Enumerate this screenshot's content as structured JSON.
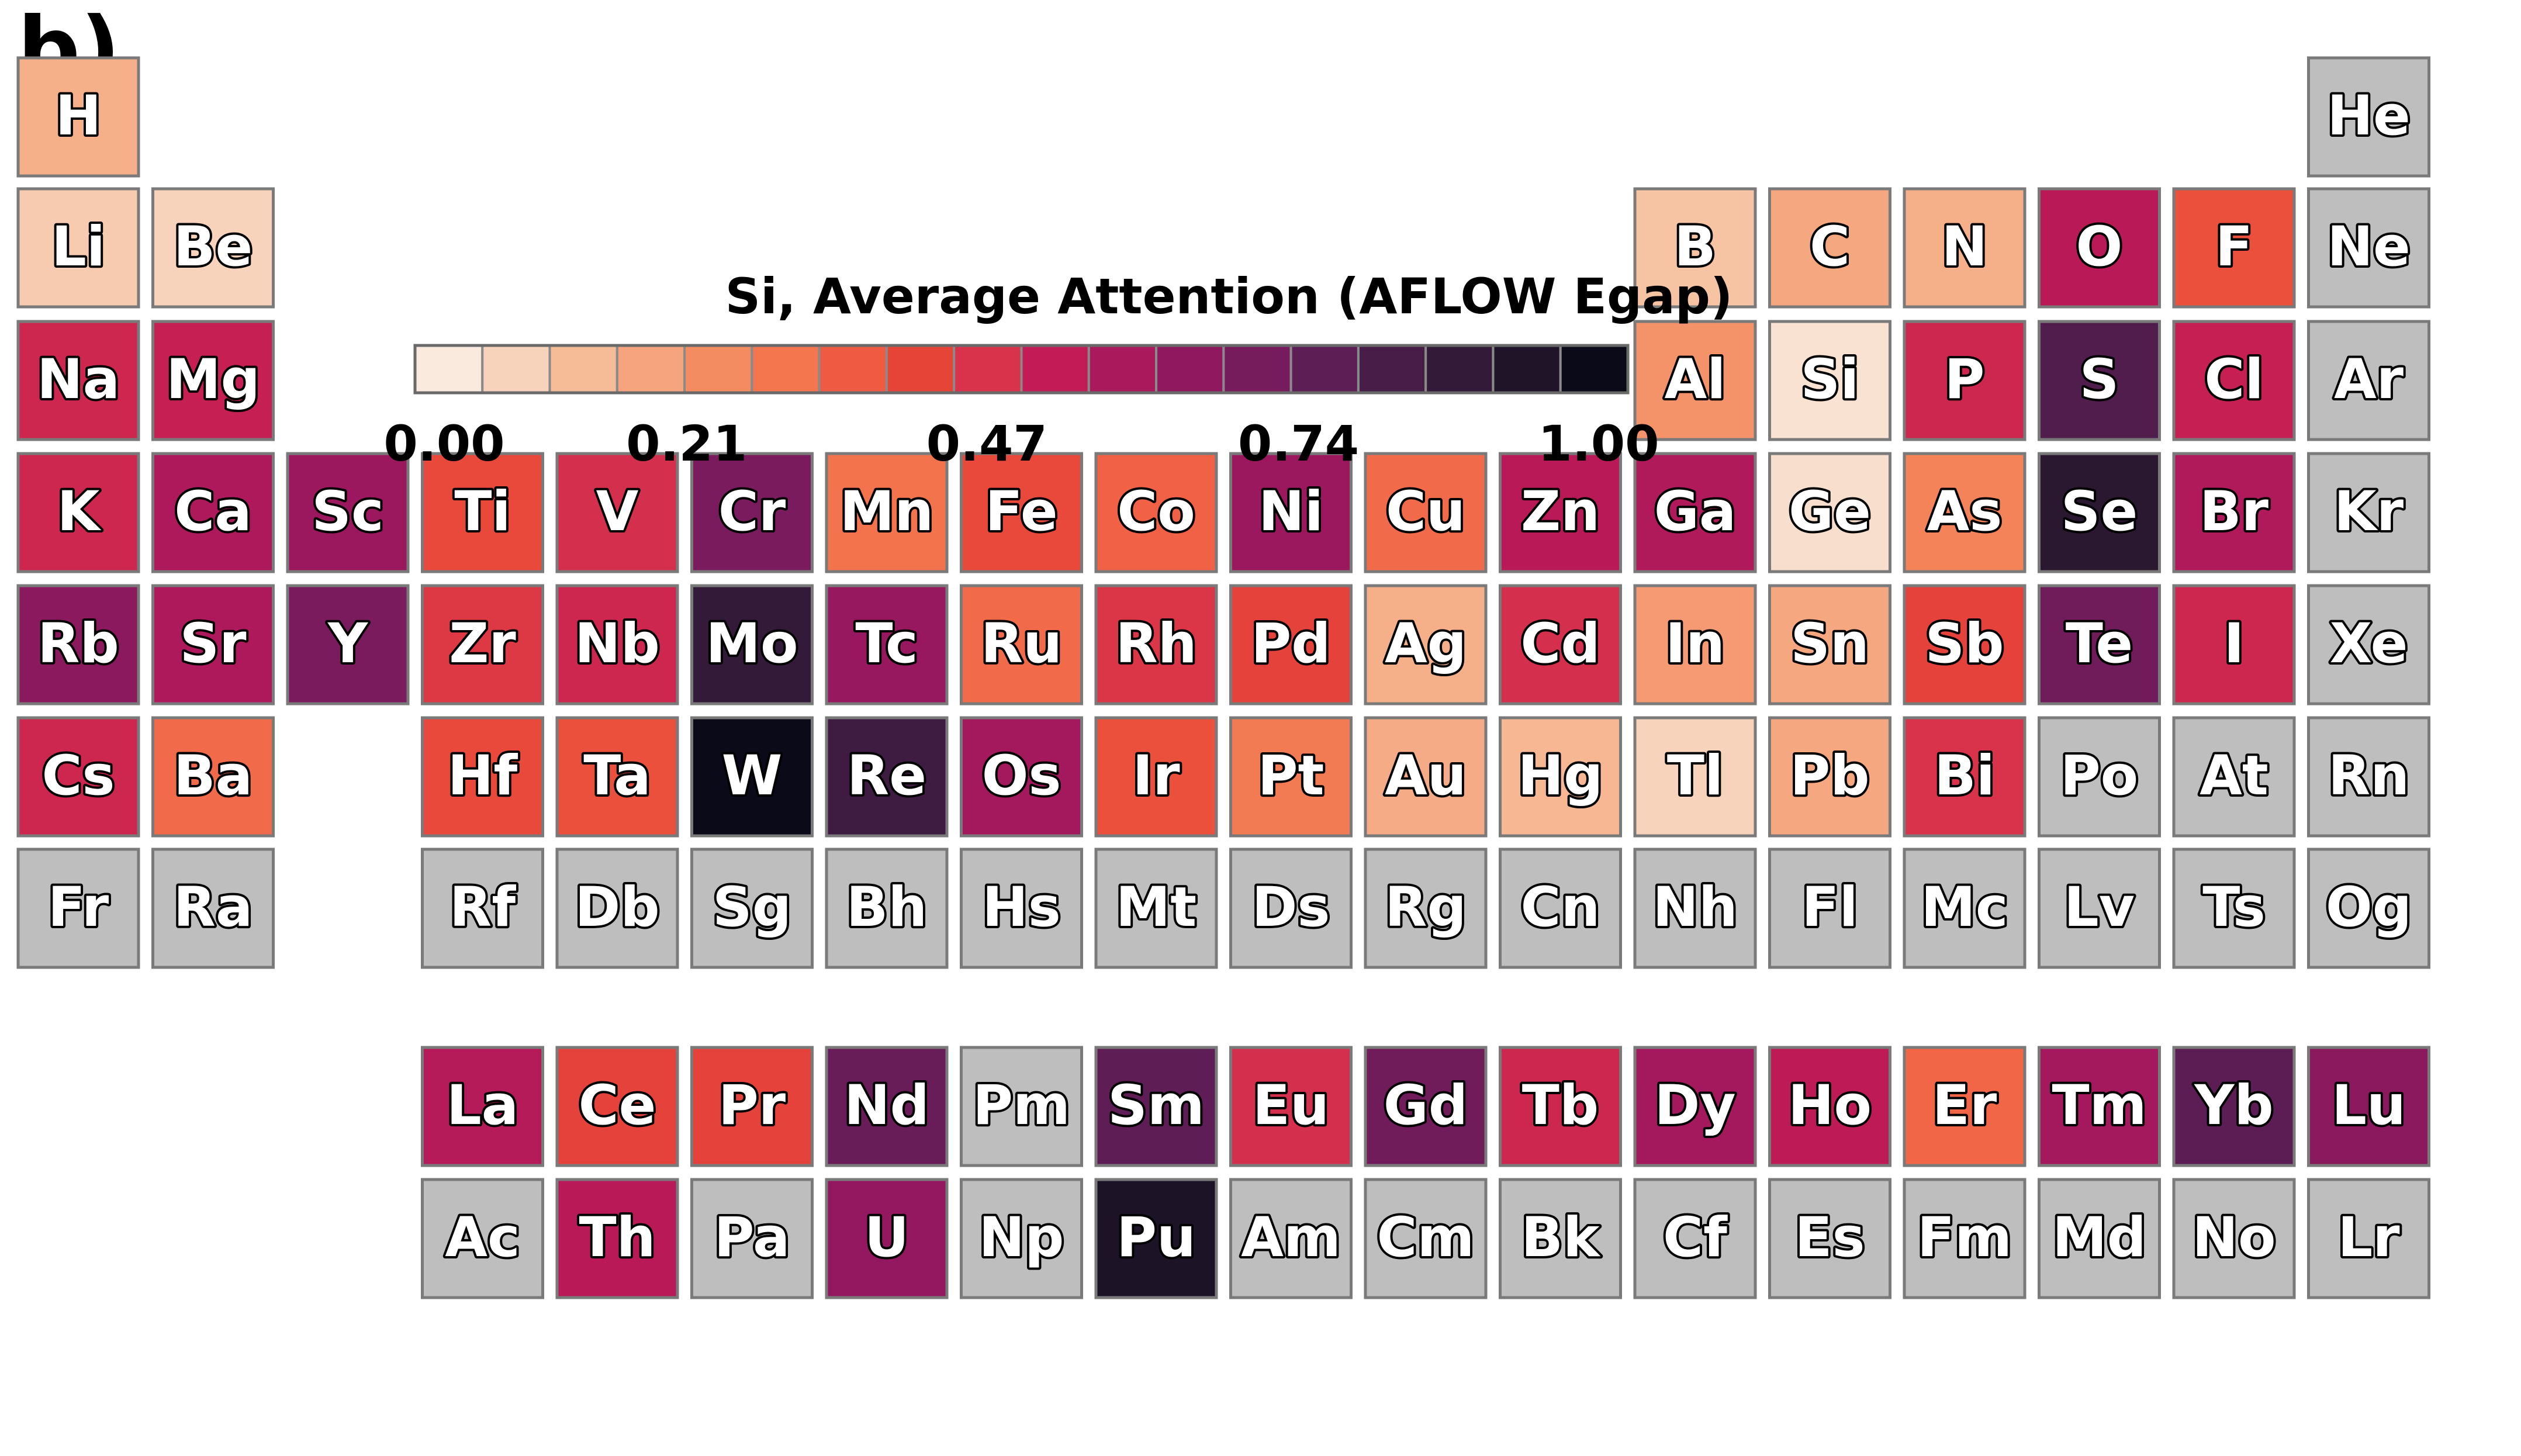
{
  "panel_label": "b)",
  "chart_data": {
    "type": "heatmap",
    "title": "Si, Average Attention (AFLOW Egap)",
    "colorbar": {
      "ticks": [
        "0.00",
        "0.21",
        "0.47",
        "0.74",
        "1.00"
      ],
      "tick_values": [
        0.0,
        0.21,
        0.47,
        0.74,
        1.0
      ],
      "range": [
        0,
        1
      ],
      "colors": [
        "#fae9dd",
        "#f7d3bc",
        "#f6bc98",
        "#f5a47d",
        "#f48c62",
        "#f3764e",
        "#ef5b42",
        "#e74438",
        "#d8334a",
        "#c21b55",
        "#a9195c",
        "#90185f",
        "#761b5c",
        "#5d1d55",
        "#481d48",
        "#321a38",
        "#201528",
        "#0a0a18"
      ],
      "missing_color": "#bebebe"
    },
    "elements": [
      {
        "symbol": "H",
        "row": 1,
        "col": 1,
        "value": 0.15
      },
      {
        "symbol": "He",
        "row": 1,
        "col": 18,
        "value": null
      },
      {
        "symbol": "Li",
        "row": 2,
        "col": 1,
        "value": 0.08
      },
      {
        "symbol": "Be",
        "row": 2,
        "col": 2,
        "value": 0.06
      },
      {
        "symbol": "B",
        "row": 2,
        "col": 13,
        "value": 0.1
      },
      {
        "symbol": "C",
        "row": 2,
        "col": 14,
        "value": 0.17
      },
      {
        "symbol": "N",
        "row": 2,
        "col": 15,
        "value": 0.15
      },
      {
        "symbol": "O",
        "row": 2,
        "col": 16,
        "value": 0.55
      },
      {
        "symbol": "F",
        "row": 2,
        "col": 17,
        "value": 0.38
      },
      {
        "symbol": "Ne",
        "row": 2,
        "col": 18,
        "value": null
      },
      {
        "symbol": "Na",
        "row": 3,
        "col": 1,
        "value": 0.5
      },
      {
        "symbol": "Mg",
        "row": 3,
        "col": 2,
        "value": 0.52
      },
      {
        "symbol": "Al",
        "row": 3,
        "col": 13,
        "value": 0.22
      },
      {
        "symbol": "Si",
        "row": 3,
        "col": 14,
        "value": 0.02
      },
      {
        "symbol": "P",
        "row": 3,
        "col": 15,
        "value": 0.5
      },
      {
        "symbol": "S",
        "row": 3,
        "col": 16,
        "value": 0.8
      },
      {
        "symbol": "Cl",
        "row": 3,
        "col": 17,
        "value": 0.52
      },
      {
        "symbol": "Ar",
        "row": 3,
        "col": 18,
        "value": null
      },
      {
        "symbol": "K",
        "row": 4,
        "col": 1,
        "value": 0.5
      },
      {
        "symbol": "Ca",
        "row": 4,
        "col": 2,
        "value": 0.58
      },
      {
        "symbol": "Sc",
        "row": 4,
        "col": 3,
        "value": 0.62
      },
      {
        "symbol": "Ti",
        "row": 4,
        "col": 4,
        "value": 0.4
      },
      {
        "symbol": "V",
        "row": 4,
        "col": 5,
        "value": 0.48
      },
      {
        "symbol": "Cr",
        "row": 4,
        "col": 6,
        "value": 0.7
      },
      {
        "symbol": "Mn",
        "row": 4,
        "col": 7,
        "value": 0.3
      },
      {
        "symbol": "Fe",
        "row": 4,
        "col": 8,
        "value": 0.4
      },
      {
        "symbol": "Co",
        "row": 4,
        "col": 9,
        "value": 0.34
      },
      {
        "symbol": "Ni",
        "row": 4,
        "col": 10,
        "value": 0.62
      },
      {
        "symbol": "Cu",
        "row": 4,
        "col": 11,
        "value": 0.32
      },
      {
        "symbol": "Zn",
        "row": 4,
        "col": 12,
        "value": 0.55
      },
      {
        "symbol": "Ga",
        "row": 4,
        "col": 13,
        "value": 0.57
      },
      {
        "symbol": "Ge",
        "row": 4,
        "col": 14,
        "value": 0.03
      },
      {
        "symbol": "As",
        "row": 4,
        "col": 15,
        "value": 0.26
      },
      {
        "symbol": "Se",
        "row": 4,
        "col": 16,
        "value": 0.91
      },
      {
        "symbol": "Br",
        "row": 4,
        "col": 17,
        "value": 0.57
      },
      {
        "symbol": "Kr",
        "row": 4,
        "col": 18,
        "value": null
      },
      {
        "symbol": "Rb",
        "row": 5,
        "col": 1,
        "value": 0.66
      },
      {
        "symbol": "Sr",
        "row": 5,
        "col": 2,
        "value": 0.58
      },
      {
        "symbol": "Y",
        "row": 5,
        "col": 3,
        "value": 0.7
      },
      {
        "symbol": "Zr",
        "row": 5,
        "col": 4,
        "value": 0.45
      },
      {
        "symbol": "Nb",
        "row": 5,
        "col": 5,
        "value": 0.5
      },
      {
        "symbol": "Mo",
        "row": 5,
        "col": 6,
        "value": 0.88
      },
      {
        "symbol": "Tc",
        "row": 5,
        "col": 7,
        "value": 0.63
      },
      {
        "symbol": "Ru",
        "row": 5,
        "col": 8,
        "value": 0.32
      },
      {
        "symbol": "Rh",
        "row": 5,
        "col": 9,
        "value": 0.46
      },
      {
        "symbol": "Pd",
        "row": 5,
        "col": 10,
        "value": 0.42
      },
      {
        "symbol": "Ag",
        "row": 5,
        "col": 11,
        "value": 0.15
      },
      {
        "symbol": "Cd",
        "row": 5,
        "col": 12,
        "value": 0.48
      },
      {
        "symbol": "In",
        "row": 5,
        "col": 13,
        "value": 0.2
      },
      {
        "symbol": "Sn",
        "row": 5,
        "col": 14,
        "value": 0.17
      },
      {
        "symbol": "Sb",
        "row": 5,
        "col": 15,
        "value": 0.42
      },
      {
        "symbol": "Te",
        "row": 5,
        "col": 16,
        "value": 0.72
      },
      {
        "symbol": "I",
        "row": 5,
        "col": 17,
        "value": 0.5
      },
      {
        "symbol": "Xe",
        "row": 5,
        "col": 18,
        "value": null
      },
      {
        "symbol": "Cs",
        "row": 6,
        "col": 1,
        "value": 0.5
      },
      {
        "symbol": "Ba",
        "row": 6,
        "col": 2,
        "value": 0.32
      },
      {
        "symbol": "Hf",
        "row": 6,
        "col": 4,
        "value": 0.4
      },
      {
        "symbol": "Ta",
        "row": 6,
        "col": 5,
        "value": 0.38
      },
      {
        "symbol": "W",
        "row": 6,
        "col": 6,
        "value": 1.0
      },
      {
        "symbol": "Re",
        "row": 6,
        "col": 7,
        "value": 0.85
      },
      {
        "symbol": "Os",
        "row": 6,
        "col": 8,
        "value": 0.6
      },
      {
        "symbol": "Ir",
        "row": 6,
        "col": 9,
        "value": 0.38
      },
      {
        "symbol": "Pt",
        "row": 6,
        "col": 10,
        "value": 0.28
      },
      {
        "symbol": "Au",
        "row": 6,
        "col": 11,
        "value": 0.16
      },
      {
        "symbol": "Hg",
        "row": 6,
        "col": 12,
        "value": 0.13
      },
      {
        "symbol": "Tl",
        "row": 6,
        "col": 13,
        "value": 0.06
      },
      {
        "symbol": "Pb",
        "row": 6,
        "col": 14,
        "value": 0.17
      },
      {
        "symbol": "Bi",
        "row": 6,
        "col": 15,
        "value": 0.47
      },
      {
        "symbol": "Po",
        "row": 6,
        "col": 16,
        "value": null
      },
      {
        "symbol": "At",
        "row": 6,
        "col": 17,
        "value": null
      },
      {
        "symbol": "Rn",
        "row": 6,
        "col": 18,
        "value": null
      },
      {
        "symbol": "Fr",
        "row": 7,
        "col": 1,
        "value": null
      },
      {
        "symbol": "Ra",
        "row": 7,
        "col": 2,
        "value": null
      },
      {
        "symbol": "Rf",
        "row": 7,
        "col": 4,
        "value": null
      },
      {
        "symbol": "Db",
        "row": 7,
        "col": 5,
        "value": null
      },
      {
        "symbol": "Sg",
        "row": 7,
        "col": 6,
        "value": null
      },
      {
        "symbol": "Bh",
        "row": 7,
        "col": 7,
        "value": null
      },
      {
        "symbol": "Hs",
        "row": 7,
        "col": 8,
        "value": null
      },
      {
        "symbol": "Mt",
        "row": 7,
        "col": 9,
        "value": null
      },
      {
        "symbol": "Ds",
        "row": 7,
        "col": 10,
        "value": null
      },
      {
        "symbol": "Rg",
        "row": 7,
        "col": 11,
        "value": null
      },
      {
        "symbol": "Cn",
        "row": 7,
        "col": 12,
        "value": null
      },
      {
        "symbol": "Nh",
        "row": 7,
        "col": 13,
        "value": null
      },
      {
        "symbol": "Fl",
        "row": 7,
        "col": 14,
        "value": null
      },
      {
        "symbol": "Mc",
        "row": 7,
        "col": 15,
        "value": null
      },
      {
        "symbol": "Lv",
        "row": 7,
        "col": 16,
        "value": null
      },
      {
        "symbol": "Ts",
        "row": 7,
        "col": 17,
        "value": null
      },
      {
        "symbol": "Og",
        "row": 7,
        "col": 18,
        "value": null
      },
      {
        "symbol": "La",
        "row": 9,
        "col": 4,
        "value": 0.56
      },
      {
        "symbol": "Ce",
        "row": 9,
        "col": 5,
        "value": 0.42
      },
      {
        "symbol": "Pr",
        "row": 9,
        "col": 6,
        "value": 0.42
      },
      {
        "symbol": "Nd",
        "row": 9,
        "col": 7,
        "value": 0.74
      },
      {
        "symbol": "Pm",
        "row": 9,
        "col": 8,
        "value": null
      },
      {
        "symbol": "Sm",
        "row": 9,
        "col": 9,
        "value": 0.76
      },
      {
        "symbol": "Eu",
        "row": 9,
        "col": 10,
        "value": 0.48
      },
      {
        "symbol": "Gd",
        "row": 9,
        "col": 11,
        "value": 0.72
      },
      {
        "symbol": "Tb",
        "row": 9,
        "col": 12,
        "value": 0.5
      },
      {
        "symbol": "Dy",
        "row": 9,
        "col": 13,
        "value": 0.6
      },
      {
        "symbol": "Ho",
        "row": 9,
        "col": 14,
        "value": 0.54
      },
      {
        "symbol": "Er",
        "row": 9,
        "col": 15,
        "value": 0.33
      },
      {
        "symbol": "Tm",
        "row": 9,
        "col": 16,
        "value": 0.6
      },
      {
        "symbol": "Yb",
        "row": 9,
        "col": 17,
        "value": 0.77
      },
      {
        "symbol": "Lu",
        "row": 9,
        "col": 18,
        "value": 0.66
      },
      {
        "symbol": "Ac",
        "row": 10,
        "col": 4,
        "value": null
      },
      {
        "symbol": "Th",
        "row": 10,
        "col": 5,
        "value": 0.55
      },
      {
        "symbol": "Pa",
        "row": 10,
        "col": 6,
        "value": null
      },
      {
        "symbol": "U",
        "row": 10,
        "col": 7,
        "value": 0.64
      },
      {
        "symbol": "Np",
        "row": 10,
        "col": 8,
        "value": null
      },
      {
        "symbol": "Pu",
        "row": 10,
        "col": 9,
        "value": 0.95
      },
      {
        "symbol": "Am",
        "row": 10,
        "col": 10,
        "value": null
      },
      {
        "symbol": "Cm",
        "row": 10,
        "col": 11,
        "value": null
      },
      {
        "symbol": "Bk",
        "row": 10,
        "col": 12,
        "value": null
      },
      {
        "symbol": "Cf",
        "row": 10,
        "col": 13,
        "value": null
      },
      {
        "symbol": "Es",
        "row": 10,
        "col": 14,
        "value": null
      },
      {
        "symbol": "Fm",
        "row": 10,
        "col": 15,
        "value": null
      },
      {
        "symbol": "Md",
        "row": 10,
        "col": 16,
        "value": null
      },
      {
        "symbol": "No",
        "row": 10,
        "col": 17,
        "value": null
      },
      {
        "symbol": "Lr",
        "row": 10,
        "col": 18,
        "value": null
      }
    ]
  }
}
